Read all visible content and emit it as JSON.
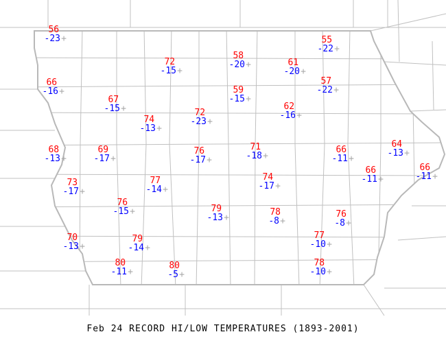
{
  "title": "Feb 24 RECORD HI/LOW TEMPERATURES (1893-2001)",
  "colors": {
    "high": "#ff0000",
    "low": "#0000ff",
    "station_marker": "#a8a8a8",
    "borders": "#c0c0c0"
  },
  "stations": [
    {
      "hi": "56",
      "lo": "-23"
    },
    {
      "hi": "72",
      "lo": "-15"
    },
    {
      "hi": "58",
      "lo": "-20"
    },
    {
      "hi": "61",
      "lo": "-20"
    },
    {
      "hi": "55",
      "lo": "-22"
    },
    {
      "hi": "66",
      "lo": "-16"
    },
    {
      "hi": "67",
      "lo": "-15"
    },
    {
      "hi": "59",
      "lo": "-15"
    },
    {
      "hi": "57",
      "lo": "-22"
    },
    {
      "hi": "74",
      "lo": "-13"
    },
    {
      "hi": "72",
      "lo": "-23"
    },
    {
      "hi": "62",
      "lo": "-16"
    },
    {
      "hi": "68",
      "lo": "-13"
    },
    {
      "hi": "69",
      "lo": "-17"
    },
    {
      "hi": "76",
      "lo": "-17"
    },
    {
      "hi": "71",
      "lo": "-18"
    },
    {
      "hi": "66",
      "lo": "-11"
    },
    {
      "hi": "64",
      "lo": "-13"
    },
    {
      "hi": "66",
      "lo": "-11"
    },
    {
      "hi": "66",
      "lo": "-11"
    },
    {
      "hi": "73",
      "lo": "-17"
    },
    {
      "hi": "77",
      "lo": "-14"
    },
    {
      "hi": "74",
      "lo": "-17"
    },
    {
      "hi": "76",
      "lo": "-15"
    },
    {
      "hi": "79",
      "lo": "-13"
    },
    {
      "hi": "78",
      "lo": "-8"
    },
    {
      "hi": "76",
      "lo": "-8"
    },
    {
      "hi": "70",
      "lo": "-13"
    },
    {
      "hi": "79",
      "lo": "-14"
    },
    {
      "hi": "77",
      "lo": "-10"
    },
    {
      "hi": "80",
      "lo": "-11"
    },
    {
      "hi": "80",
      "lo": "-5"
    },
    {
      "hi": "78",
      "lo": "-10"
    }
  ]
}
